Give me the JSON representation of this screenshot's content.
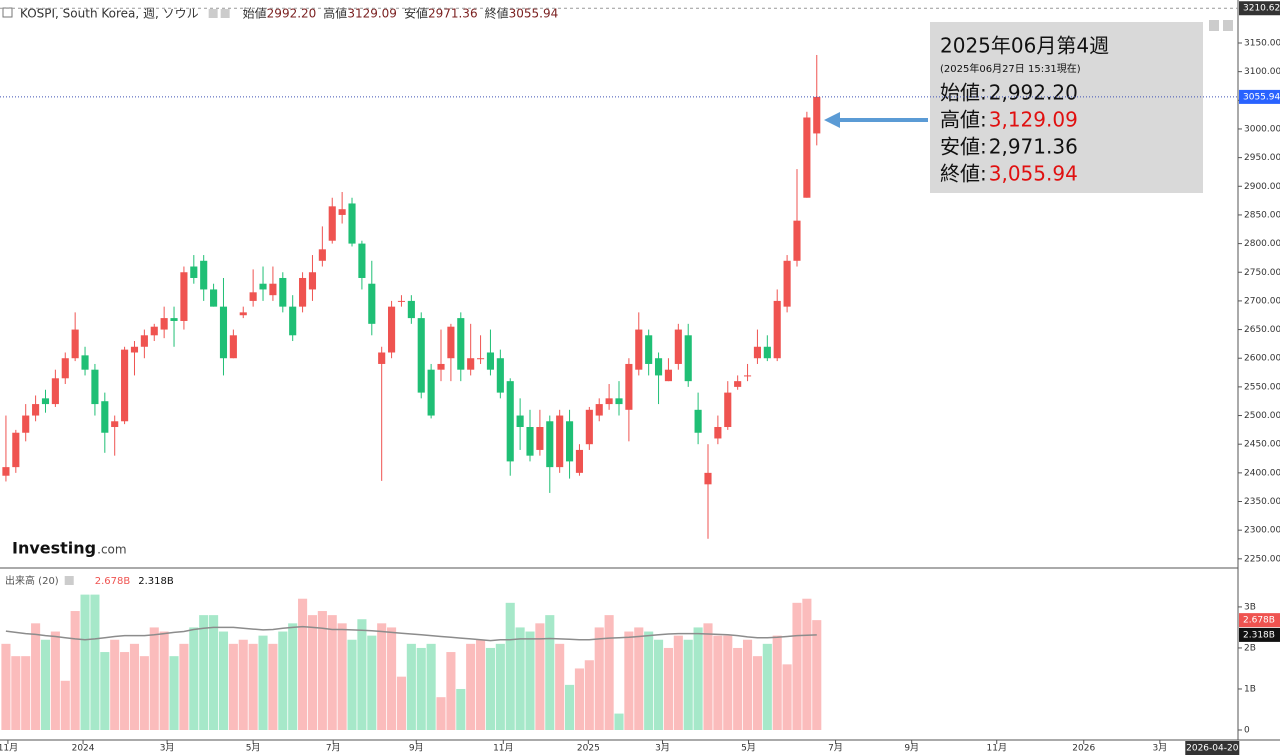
{
  "chart_data": {
    "type": "candlestick",
    "title": "KOSPI, South Korea, 週, ソウル",
    "header_fields": [
      {
        "name": "始値",
        "value": 2992.2,
        "label": "2992.20"
      },
      {
        "name": "高値",
        "value": 3129.09,
        "label": "3129.09"
      },
      {
        "name": "安値",
        "value": 2971.36,
        "label": "2971.36"
      },
      {
        "name": "終値",
        "value": 3055.94,
        "label": "3055.94"
      }
    ],
    "info_box": {
      "title": "2025年06月第4週",
      "subtitle": "(2025年06月27日 15:31現在)",
      "fields": [
        {
          "name": "始値:",
          "value": 2992.2,
          "label": "2,992.20",
          "color": "#111111"
        },
        {
          "name": "高値:",
          "value": 3129.09,
          "label": "3,129.09",
          "color": "#e01010"
        },
        {
          "name": "安値:",
          "value": 2971.36,
          "label": "2,971.36",
          "color": "#111111"
        },
        {
          "name": "終値:",
          "value": 3055.94,
          "label": "3,055.94",
          "color": "#e01010"
        }
      ]
    },
    "x": [
      0,
      1,
      2,
      3,
      4,
      5,
      6,
      7,
      8,
      9,
      10,
      11,
      12,
      13,
      14,
      15,
      16,
      17,
      18,
      19,
      20,
      21,
      22,
      23,
      24,
      25,
      26,
      27,
      28,
      29,
      30,
      31,
      32,
      33,
      34,
      35,
      36,
      37,
      38,
      39,
      40,
      41,
      42,
      43,
      44,
      45,
      46,
      47,
      48,
      49,
      50,
      51,
      52,
      53,
      54,
      55,
      56,
      57,
      58,
      59,
      60,
      61,
      62,
      63,
      64,
      65,
      66,
      67,
      68,
      69,
      70,
      71,
      72,
      73,
      74,
      75,
      76,
      77,
      78,
      79,
      80,
      81,
      82
    ],
    "open": [
      2395,
      2410,
      2470,
      2500,
      2530,
      2520,
      2565,
      2600,
      2605,
      2580,
      2525,
      2480,
      2490,
      2610,
      2620,
      2640,
      2650,
      2670,
      2665,
      2760,
      2770,
      2720,
      2690,
      2600,
      2675,
      2700,
      2730,
      2710,
      2740,
      2690,
      2690,
      2720,
      2770,
      2805,
      2850,
      2870,
      2800,
      2730,
      2590,
      2610,
      2700,
      2700,
      2670,
      2580,
      2580,
      2600,
      2670,
      2580,
      2600,
      2610,
      2600,
      2560,
      2500,
      2480,
      2440,
      2490,
      2410,
      2490,
      2400,
      2450,
      2500,
      2520,
      2530,
      2510,
      2580,
      2640,
      2600,
      2560,
      2590,
      2640,
      2510,
      2380,
      2460,
      2480,
      2550,
      2570,
      2600,
      2620,
      2600,
      2690,
      2770,
      2880,
      2992.2
    ],
    "high": [
      2500,
      2475,
      2520,
      2535,
      2545,
      2580,
      2610,
      2680,
      2620,
      2590,
      2540,
      2500,
      2620,
      2630,
      2650,
      2660,
      2690,
      2690,
      2760,
      2780,
      2780,
      2730,
      2740,
      2650,
      2690,
      2755,
      2760,
      2760,
      2750,
      2710,
      2750,
      2780,
      2830,
      2880,
      2890,
      2880,
      2805,
      2770,
      2620,
      2700,
      2710,
      2710,
      2680,
      2590,
      2650,
      2660,
      2680,
      2660,
      2640,
      2650,
      2615,
      2565,
      2530,
      2510,
      2510,
      2500,
      2510,
      2510,
      2450,
      2515,
      2530,
      2555,
      2560,
      2600,
      2680,
      2650,
      2610,
      2600,
      2660,
      2660,
      2540,
      2450,
      2500,
      2560,
      2570,
      2590,
      2650,
      2640,
      2720,
      2780,
      2930,
      3030,
      3129.09
    ],
    "low": [
      2385,
      2400,
      2455,
      2490,
      2505,
      2515,
      2555,
      2595,
      2570,
      2500,
      2435,
      2430,
      2485,
      2570,
      2600,
      2630,
      2635,
      2620,
      2650,
      2730,
      2700,
      2690,
      2570,
      2600,
      2670,
      2690,
      2700,
      2700,
      2680,
      2630,
      2680,
      2700,
      2760,
      2800,
      2835,
      2795,
      2720,
      2640,
      2386,
      2600,
      2690,
      2660,
      2530,
      2495,
      2560,
      2560,
      2560,
      2570,
      2590,
      2570,
      2530,
      2395,
      2440,
      2420,
      2430,
      2365,
      2400,
      2390,
      2395,
      2440,
      2490,
      2510,
      2500,
      2455,
      2570,
      2570,
      2520,
      2560,
      2580,
      2550,
      2450,
      2285,
      2450,
      2475,
      2545,
      2560,
      2590,
      2595,
      2595,
      2680,
      2760,
      2880,
      2971.36
    ],
    "close": [
      2410,
      2470,
      2500,
      2520,
      2520,
      2565,
      2600,
      2650,
      2580,
      2520,
      2470,
      2490,
      2615,
      2620,
      2640,
      2655,
      2670,
      2665,
      2750,
      2740,
      2720,
      2690,
      2600,
      2640,
      2680,
      2715,
      2720,
      2730,
      2690,
      2640,
      2740,
      2750,
      2790,
      2865,
      2860,
      2800,
      2740,
      2660,
      2610,
      2690,
      2700,
      2670,
      2540,
      2500,
      2590,
      2655,
      2580,
      2600,
      2600,
      2580,
      2540,
      2420,
      2480,
      2430,
      2480,
      2410,
      2500,
      2420,
      2440,
      2510,
      2520,
      2530,
      2520,
      2590,
      2650,
      2590,
      2570,
      2580,
      2650,
      2560,
      2470,
      2400,
      2480,
      2540,
      2560,
      2570,
      2620,
      2600,
      2700,
      2770,
      2840,
      3020,
      3055.94
    ],
    "volume": [
      2.1,
      1.8,
      1.8,
      2.6,
      2.2,
      2.4,
      1.2,
      2.9,
      3.3,
      3.3,
      1.9,
      2.2,
      1.9,
      2.1,
      1.8,
      2.5,
      2.4,
      1.8,
      2.1,
      2.5,
      2.8,
      2.8,
      2.4,
      2.1,
      2.2,
      2.1,
      2.3,
      2.1,
      2.4,
      2.6,
      3.2,
      2.8,
      2.9,
      2.8,
      2.6,
      2.2,
      2.7,
      2.3,
      2.6,
      2.5,
      1.3,
      2.1,
      2.0,
      2.1,
      0.8,
      1.9,
      1.0,
      2.1,
      2.2,
      2.0,
      2.1,
      3.1,
      2.5,
      2.4,
      2.6,
      2.8,
      2.1,
      1.1,
      1.5,
      1.7,
      2.5,
      2.8,
      0.4,
      2.4,
      2.5,
      2.4,
      2.2,
      2.0,
      2.3,
      2.2,
      2.5,
      2.6,
      2.3,
      2.3,
      2.0,
      2.2,
      1.8,
      2.1,
      2.3,
      1.6,
      3.1,
      3.2,
      2.678
    ],
    "volume_ma": [
      2.41,
      2.38,
      2.35,
      2.33,
      2.3,
      2.28,
      2.25,
      2.22,
      2.2,
      2.22,
      2.25,
      2.28,
      2.3,
      2.3,
      2.3,
      2.32,
      2.35,
      2.38,
      2.4,
      2.45,
      2.48,
      2.5,
      2.5,
      2.5,
      2.48,
      2.46,
      2.44,
      2.45,
      2.48,
      2.5,
      2.52,
      2.5,
      2.48,
      2.45,
      2.45,
      2.44,
      2.43,
      2.42,
      2.4,
      2.38,
      2.36,
      2.34,
      2.32,
      2.3,
      2.28,
      2.26,
      2.24,
      2.22,
      2.2,
      2.18,
      2.2,
      2.2,
      2.22,
      2.22,
      2.22,
      2.23,
      2.22,
      2.21,
      2.2,
      2.2,
      2.22,
      2.24,
      2.25,
      2.26,
      2.28,
      2.3,
      2.32,
      2.34,
      2.35,
      2.35,
      2.35,
      2.34,
      2.33,
      2.32,
      2.3,
      2.27,
      2.25,
      2.25,
      2.26,
      2.28,
      2.3,
      2.31,
      2.318
    ],
    "xlim": [
      -0.6,
      124.6
    ],
    "xticks": [
      {
        "value": 0.2,
        "label": "11月"
      },
      {
        "value": 7.8,
        "label": "2024"
      },
      {
        "value": 16.3,
        "label": "3月"
      },
      {
        "value": 25,
        "label": "5月"
      },
      {
        "value": 33.1,
        "label": "7月"
      },
      {
        "value": 41.5,
        "label": "9月"
      },
      {
        "value": 50.3,
        "label": "11月"
      },
      {
        "value": 58.9,
        "label": "2025"
      },
      {
        "value": 66.4,
        "label": "3月"
      },
      {
        "value": 75.1,
        "label": "5月"
      },
      {
        "value": 83.9,
        "label": "7月"
      },
      {
        "value": 91.6,
        "label": "9月"
      },
      {
        "value": 100.2,
        "label": "11月"
      },
      {
        "value": 109,
        "label": "2026"
      },
      {
        "value": 116.7,
        "label": "3月"
      }
    ],
    "cursor_date": {
      "value": 122,
      "label": "2026-04-20"
    },
    "ylim": [
      2234,
      3225
    ],
    "yticks": [
      {
        "value": 2250,
        "label": "2250.00"
      },
      {
        "value": 2300,
        "label": "2300.00"
      },
      {
        "value": 2350,
        "label": "2350.00"
      },
      {
        "value": 2400,
        "label": "2400.00"
      },
      {
        "value": 2450,
        "label": "2450.00"
      },
      {
        "value": 2500,
        "label": "2500.00"
      },
      {
        "value": 2550,
        "label": "2550.00"
      },
      {
        "value": 2600,
        "label": "2600.00"
      },
      {
        "value": 2650,
        "label": "2650.00"
      },
      {
        "value": 2700,
        "label": "2700.00"
      },
      {
        "value": 2750,
        "label": "2750.00"
      },
      {
        "value": 2800,
        "label": "2800.00"
      },
      {
        "value": 2850,
        "label": "2850.00"
      },
      {
        "value": 2900,
        "label": "2900.00"
      },
      {
        "value": 2950,
        "label": "2950.00"
      },
      {
        "value": 3000,
        "label": "3000.00"
      },
      {
        "value": 3050,
        "label": "3050.00"
      },
      {
        "value": 3100,
        "label": "3100.00"
      },
      {
        "value": 3150,
        "label": "3150.00"
      }
    ],
    "top_marker": {
      "value": 3210.62,
      "label": "3210.62"
    },
    "last_price": {
      "value": 3055.94,
      "label": "3055.94"
    },
    "volume_title": "出来高 (20)",
    "volume_ylim": [
      0,
      3.9
    ],
    "volume_yticks": [
      0,
      {
        "value": 1,
        "label": "1B"
      },
      {
        "value": 2,
        "label": "2B"
      },
      {
        "value": 3,
        "label": "3B"
      }
    ],
    "volume_labels": [
      {
        "value": 2.678,
        "label": "2.678B",
        "color": "#ef5350"
      },
      {
        "value": 2.318,
        "label": "2.318B",
        "color": "#111111"
      }
    ],
    "brand": {
      "name": "Investing",
      "suffix": ".com"
    },
    "up_color": "#ef5350",
    "down_color": "#1fbf75",
    "up_volume_color": "#fbbcbc",
    "down_volume_color": "#a6e8c9",
    "ma_color": "#8c8c8c"
  }
}
